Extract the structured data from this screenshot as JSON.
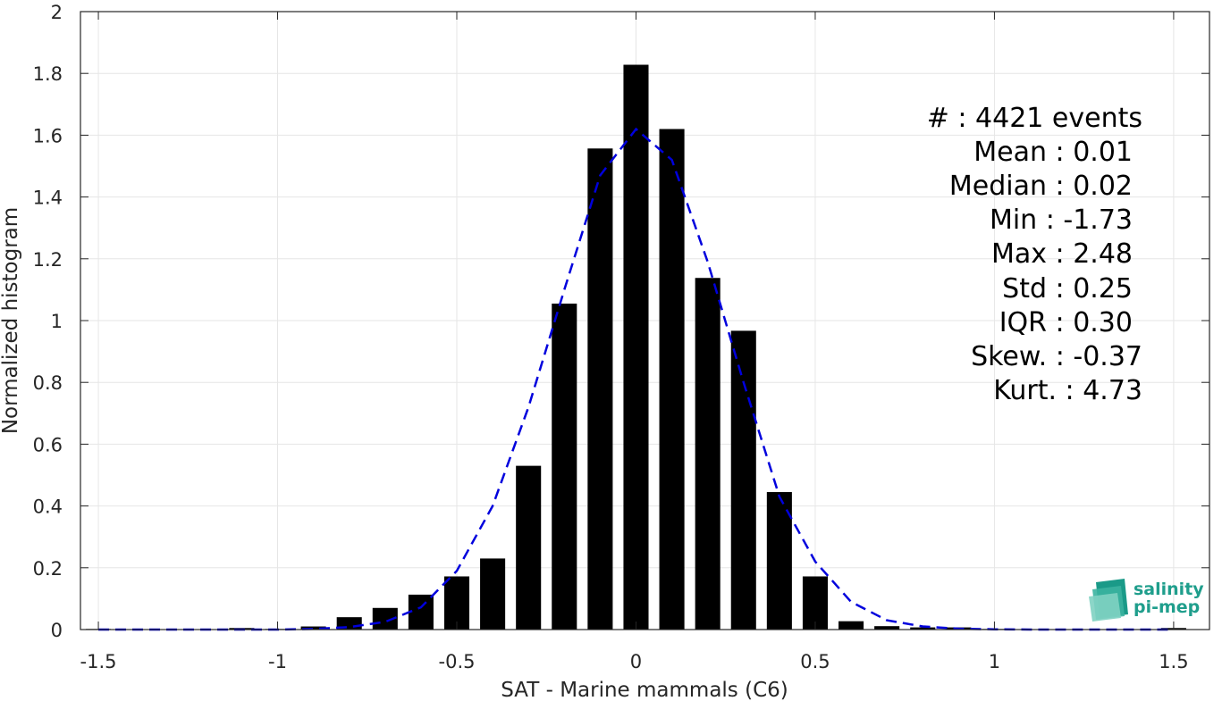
{
  "chart_data": {
    "type": "bar",
    "xlabel": "SAT - Marine mammals (C6)",
    "ylabel": "Normalized histogram",
    "xlim": [
      -1.55,
      1.6
    ],
    "ylim": [
      0,
      2
    ],
    "xticks": [
      -1.5,
      -1,
      -0.5,
      0,
      0.5,
      1,
      1.5
    ],
    "xtick_labels": [
      "-1.5",
      "-1",
      "-0.5",
      "0",
      "0.5",
      "1",
      "1.5"
    ],
    "yticks": [
      0,
      0.2,
      0.4,
      0.6,
      0.8,
      1,
      1.2,
      1.4,
      1.6,
      1.8,
      2
    ],
    "ytick_labels": [
      "0",
      "0.2",
      "0.4",
      "0.6",
      "0.8",
      "1",
      "1.2",
      "1.4",
      "1.6",
      "1.8",
      "2"
    ],
    "grid": true,
    "bar_color": "#000000",
    "bar_width": 0.07,
    "bars": {
      "x": [
        -1.5,
        -1.4,
        -1.3,
        -1.2,
        -1.1,
        -1.0,
        -0.9,
        -0.8,
        -0.7,
        -0.6,
        -0.5,
        -0.4,
        -0.3,
        -0.2,
        -0.1,
        0.0,
        0.1,
        0.2,
        0.3,
        0.4,
        0.5,
        0.6,
        0.7,
        0.8,
        0.9,
        1.0,
        1.1,
        1.2,
        1.3,
        1.4,
        1.5
      ],
      "values": [
        0.002,
        0.0,
        0.0,
        0.0,
        0.005,
        0.002,
        0.01,
        0.04,
        0.07,
        0.113,
        0.172,
        0.23,
        0.53,
        1.055,
        1.557,
        1.828,
        1.62,
        1.138,
        0.967,
        0.445,
        0.172,
        0.027,
        0.011,
        0.007,
        0.007,
        0.002,
        0.0,
        0.0,
        0.0,
        0.0,
        0.005
      ]
    },
    "fit_curve": {
      "color": "#0000dd",
      "style": "dashed",
      "x": [
        -1.5,
        -1.4,
        -1.3,
        -1.2,
        -1.1,
        -1.0,
        -0.9,
        -0.8,
        -0.7,
        -0.6,
        -0.5,
        -0.4,
        -0.3,
        -0.2,
        -0.1,
        0.0,
        0.1,
        0.2,
        0.3,
        0.4,
        0.5,
        0.6,
        0.7,
        0.8,
        0.9,
        1.0,
        1.1,
        1.2,
        1.3,
        1.4,
        1.5
      ],
      "values": [
        0.0,
        0.0,
        0.0,
        0.0,
        0.0,
        0.0,
        0.002,
        0.008,
        0.025,
        0.072,
        0.19,
        0.4,
        0.72,
        1.1,
        1.47,
        1.62,
        1.52,
        1.19,
        0.8,
        0.43,
        0.22,
        0.09,
        0.03,
        0.01,
        0.003,
        0.001,
        0.0,
        0.0,
        0.0,
        0.0,
        0.0
      ]
    },
    "stats": [
      {
        "label": "#  : 4421 events"
      },
      {
        "label": "Mean : 0.01"
      },
      {
        "label": "Median : 0.02"
      },
      {
        "label": "Min : -1.73"
      },
      {
        "label": "Max : 2.48"
      },
      {
        "label": "Std : 0.25"
      },
      {
        "label": "IQR : 0.30"
      },
      {
        "label": "Skew. : -0.37"
      },
      {
        "label": "Kurt. : 4.73"
      }
    ]
  },
  "logo": {
    "line1": "salinity",
    "line2": "pi-mep"
  }
}
